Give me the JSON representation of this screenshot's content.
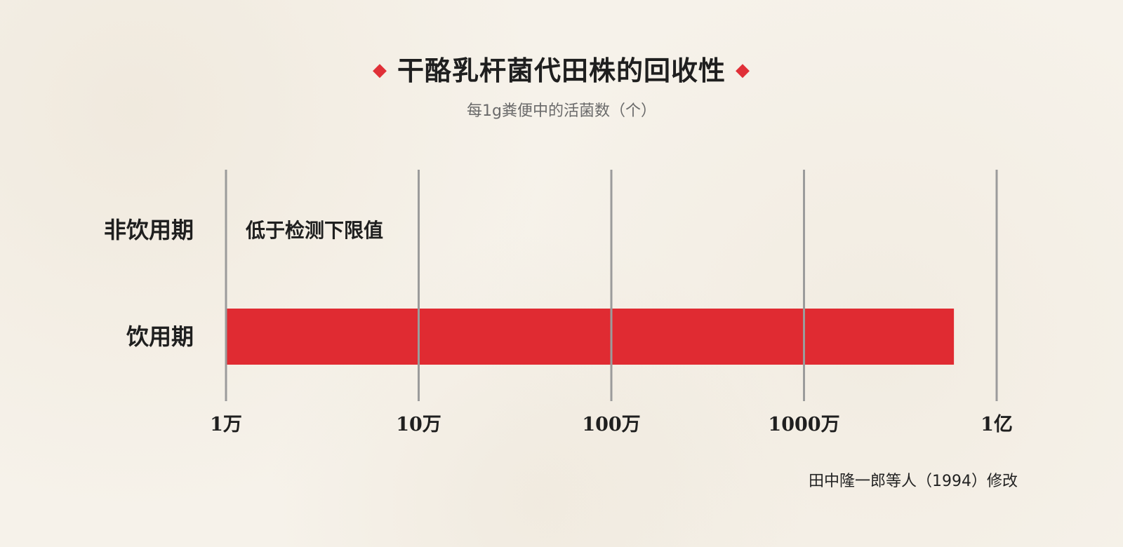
{
  "chart_data": {
    "type": "bar",
    "orientation": "horizontal",
    "title": "干酪乳杆菌代田株的回收性",
    "subtitle": "每1g粪便中的活菌数（个）",
    "xscale": "log",
    "xlim": [
      10000,
      100000000
    ],
    "ticks": [
      {
        "value": 10000,
        "label": "1万"
      },
      {
        "value": 100000,
        "label": "10万"
      },
      {
        "value": 1000000,
        "label": "100万"
      },
      {
        "value": 10000000,
        "label": "1000万"
      },
      {
        "value": 100000000,
        "label": "1亿"
      }
    ],
    "grid": true,
    "categories": [
      "非饮用期",
      "饮用期"
    ],
    "values": [
      null,
      60000000
    ],
    "annotations": [
      {
        "category": "非饮用期",
        "text": "低于检测下限值"
      }
    ],
    "bar_color": "#e02b32",
    "source": "田中隆一郎等人（1994）修改"
  },
  "colors": {
    "accent": "#e03038",
    "grid": "#9b9b9b",
    "background": "#f6f2ea"
  },
  "decor": {
    "diamond_left": "◆",
    "diamond_right": "◆"
  }
}
